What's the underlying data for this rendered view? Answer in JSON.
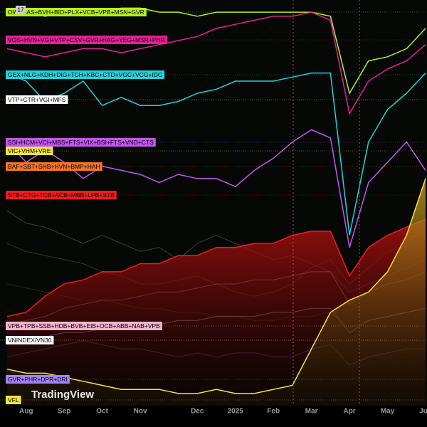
{
  "chart_data": {
    "type": "line",
    "badge": "17",
    "watermark": "TradingView",
    "categories": [
      null,
      "Aug",
      null,
      "Sep",
      null,
      "Oct",
      null,
      "Nov",
      null,
      null,
      "Dec",
      null,
      "2025",
      null,
      "Feb",
      null,
      "Mar",
      null,
      "Apr",
      null,
      "May",
      null,
      "Jun"
    ],
    "ylim": [
      0,
      100
    ],
    "series": [
      {
        "name": "OW+GAS+BVH+BID+PLX+VCB+VPB+MSN+GVR",
        "color": "#b4f01e",
        "values": [
          97,
          97,
          96,
          97,
          97,
          97,
          98,
          98,
          97,
          97,
          96,
          97,
          97,
          97,
          97,
          97,
          97,
          96,
          77,
          85,
          86,
          88,
          93
        ]
      },
      {
        "name": "VOS+HVN+VGI+VTP+CSV+GVR+HAG+YEG+MSR+PHR",
        "color": "#e8209a",
        "values": [
          88,
          87,
          86,
          87,
          88,
          88,
          87,
          88,
          89,
          90,
          91,
          93,
          94,
          95,
          96,
          96,
          97,
          95,
          72,
          80,
          83,
          85,
          89
        ]
      },
      {
        "name": "GEX+NLG+KDH+DIG+TCH+KBC+CTD+VGC+VCG+IDC",
        "color": "#22d3dc",
        "values": [
          82,
          80,
          75,
          77,
          80,
          74,
          76,
          74,
          74,
          75,
          77,
          78,
          80,
          80,
          80,
          81,
          82,
          82,
          42,
          65,
          73,
          77,
          82
        ]
      },
      {
        "name": "VTP+CTR+VGI+MFS",
        "color": "#ffffff",
        "values": [
          48,
          45,
          44,
          42,
          40,
          42,
          40,
          38,
          39,
          36,
          40,
          42,
          40,
          38,
          36,
          37,
          35,
          33,
          28,
          30,
          32,
          34,
          36
        ]
      },
      {
        "name": "SSI+HCM+VCI+MBS+FTS+VIX+BSI+FTS+VND+CTS",
        "color": "#c455f2",
        "values": [
          65,
          60,
          63,
          60,
          56,
          59,
          58,
          57,
          55,
          57,
          56,
          56,
          54,
          58,
          61,
          65,
          68,
          66,
          39,
          55,
          60,
          65,
          58
        ]
      },
      {
        "name": "VIC+VHM+VRE",
        "color": "#f2e444",
        "values": [
          40,
          38,
          37,
          36,
          35,
          33,
          32,
          30,
          30,
          31,
          32,
          30,
          28,
          27,
          28,
          30,
          34,
          36,
          30,
          34,
          38,
          40,
          44
        ]
      },
      {
        "name": "BAF+SBT+SHB+HVN+BMP+HAH",
        "color": "#f47424",
        "values": [
          30,
          29,
          28,
          27,
          26,
          26,
          25,
          24,
          24,
          23,
          23,
          22,
          22,
          21,
          21,
          22,
          22,
          23,
          19,
          21,
          22,
          23,
          24
        ]
      },
      {
        "name": "STB+CTG+TCB+ACB+MBB+LPB+STB",
        "color": "#f21c1c",
        "area": true,
        "values": [
          22,
          23,
          27,
          30,
          31,
          33,
          33,
          35,
          35,
          37,
          37,
          39,
          39,
          40,
          40,
          42,
          43,
          43,
          32,
          39,
          42,
          44,
          46
        ]
      },
      {
        "name": "VPB+TPB+SSB+HDB+BVB+EIB+OCB+ABB+NAB+VPB",
        "color": "#f4b4cc",
        "values": [
          20,
          21,
          22,
          24,
          25,
          26,
          26,
          27,
          28,
          28,
          29,
          30,
          30,
          31,
          31,
          32,
          33,
          33,
          25,
          28,
          30,
          31,
          33
        ]
      },
      {
        "name": "VNINDEX/VN30",
        "color": "#ffffff",
        "values": [
          16,
          16,
          17,
          18,
          18,
          19,
          19,
          20,
          20,
          21,
          21,
          22,
          22,
          22,
          23,
          23,
          24,
          24,
          18,
          21,
          22,
          23,
          24
        ]
      },
      {
        "name": "GVR+PHR+DPR+DRI",
        "color": "#a484f4",
        "values": [
          12,
          13,
          14,
          15,
          16,
          15,
          14,
          14,
          13,
          12,
          13,
          12,
          13,
          13,
          12,
          12,
          14,
          15,
          10,
          12,
          13,
          14,
          14
        ]
      },
      {
        "name": "VFL",
        "color": "#f2e444",
        "area": true,
        "values": [
          9,
          8,
          8,
          7,
          6,
          5,
          4,
          4,
          4,
          3,
          3,
          4,
          3,
          3,
          4,
          5,
          14,
          23,
          26,
          28,
          33,
          42,
          56
        ]
      }
    ]
  }
}
